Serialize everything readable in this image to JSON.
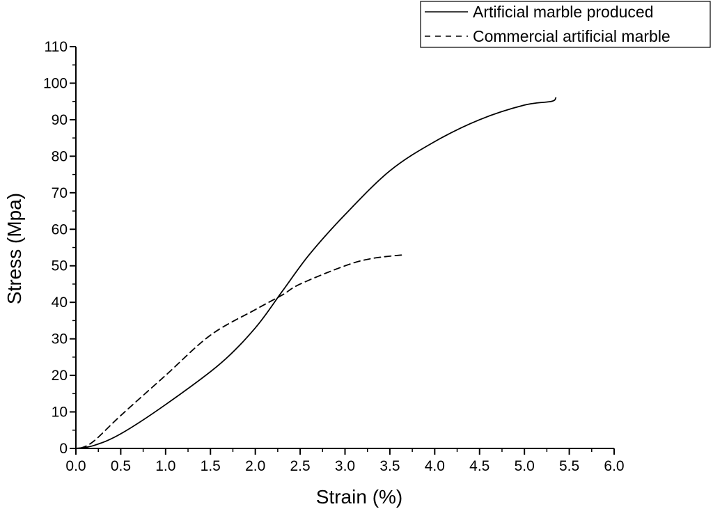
{
  "chart_data": {
    "type": "line",
    "title": "",
    "xlabel": "Strain (%)",
    "ylabel": "Stress (Mpa)",
    "xlim": [
      0.0,
      6.0
    ],
    "ylim": [
      0,
      110
    ],
    "x_ticks": [
      "0.0",
      "0.5",
      "1.0",
      "1.5",
      "2.0",
      "2.5",
      "3.0",
      "3.5",
      "4.0",
      "4.5",
      "5.0",
      "5.5",
      "6.0"
    ],
    "y_ticks": [
      "0",
      "10",
      "20",
      "30",
      "40",
      "50",
      "60",
      "70",
      "80",
      "90",
      "100",
      "110"
    ],
    "grid": false,
    "legend_position": "top-right",
    "series": [
      {
        "name": "Artificial marble produced",
        "style": "solid",
        "color": "#000000",
        "x": [
          0.0,
          0.2,
          0.5,
          1.0,
          1.6,
          2.0,
          2.3,
          2.6,
          3.0,
          3.5,
          4.0,
          4.5,
          5.0,
          5.3,
          5.35
        ],
        "y": [
          0,
          0.8,
          4,
          12,
          23,
          33,
          43,
          53,
          64,
          76,
          84,
          90,
          94,
          95,
          96
        ]
      },
      {
        "name": "Commercial artificial marble",
        "style": "dashed",
        "color": "#000000",
        "x": [
          0.05,
          0.2,
          0.5,
          1.0,
          1.5,
          2.0,
          2.3,
          2.5,
          3.0,
          3.3,
          3.65
        ],
        "y": [
          0,
          2,
          9,
          20,
          31,
          38,
          42,
          45,
          50,
          52,
          53
        ]
      }
    ]
  }
}
